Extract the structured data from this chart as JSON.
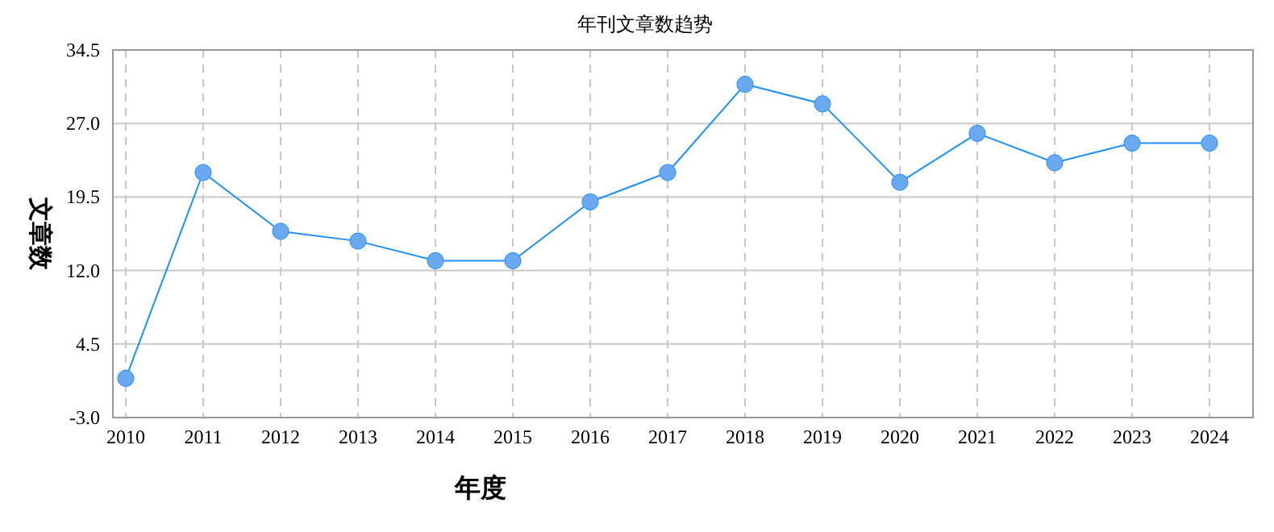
{
  "chart_data": {
    "type": "line",
    "title": "年刊文章数趋势",
    "xlabel": "年度",
    "ylabel": "文章数",
    "categories": [
      "2010",
      "2011",
      "2012",
      "2013",
      "2014",
      "2015",
      "2016",
      "2017",
      "2018",
      "2019",
      "2020",
      "2021",
      "2022",
      "2023",
      "2024"
    ],
    "series": [
      {
        "color": "#1e90ff",
        "values": [
          1,
          22,
          16,
          15,
          13,
          13,
          19,
          22,
          31,
          29,
          21,
          26,
          23,
          25,
          25
        ]
      }
    ],
    "ylim": [
      -3,
      34.5
    ],
    "yticks": [
      {
        "value": -3,
        "label": "-3.0"
      },
      4.5,
      {
        "value": 12,
        "label": "12.0"
      },
      19.5,
      {
        "value": 27,
        "label": "27.0"
      },
      34.5
    ],
    "grid": true,
    "marker": "circle"
  }
}
